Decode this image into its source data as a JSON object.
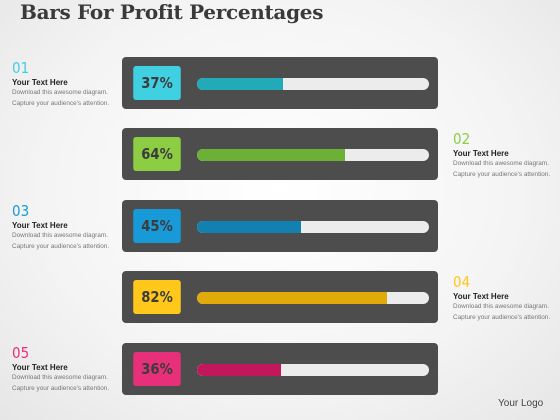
{
  "title": "Bars For Profit Percentages",
  "colors": {
    "background": "#f2f2f2",
    "row_bg": "#4d4d4d",
    "track": "#ececec"
  },
  "rows": [
    {
      "number": "01",
      "percent_label": "37%",
      "value": 37,
      "badge_color": "#3fd0e2",
      "bar_color": "#21aab8",
      "text_title": "Your Text Here",
      "text_line1": "Download this awesome diagram.",
      "text_line2": "Capture  your audience's  attention."
    },
    {
      "number": "02",
      "percent_label": "64%",
      "value": 64,
      "badge_color": "#8ccd44",
      "bar_color": "#6db038",
      "text_title": "Your Text Here",
      "text_line1": "Download this awesome diagram.",
      "text_line2": "Capture  your audience's  attention."
    },
    {
      "number": "03",
      "percent_label": "45%",
      "value": 45,
      "badge_color": "#189ad9",
      "bar_color": "#1281b2",
      "text_title": "Your Text Here",
      "text_line1": "Download this awesome diagram.",
      "text_line2": "Capture  your audience's  attention."
    },
    {
      "number": "04",
      "percent_label": "82%",
      "value": 82,
      "badge_color": "#ffc81b",
      "bar_color": "#e0ab08",
      "text_title": "Your Text Here",
      "text_line1": "Download this awesome diagram.",
      "text_line2": "Capture  your audience's  attention."
    },
    {
      "number": "05",
      "percent_label": "36%",
      "value": 36,
      "badge_color": "#e8307a",
      "bar_color": "#c2185b",
      "text_title": "Your Text Here",
      "text_line1": "Download this awesome diagram.",
      "text_line2": "Capture  your audience's  attention."
    }
  ],
  "logo": "Your Logo"
}
